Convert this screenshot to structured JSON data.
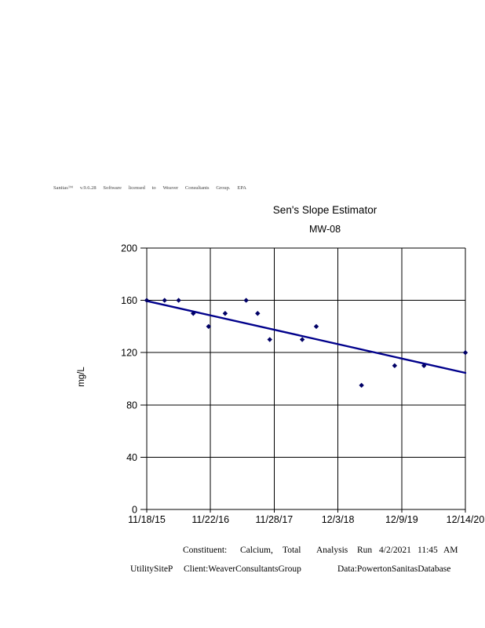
{
  "watermark": {
    "tokens": [
      "Sanitas™",
      "v.9.6.28",
      "Software",
      "licensed",
      "to",
      "Weaver",
      "Consultants",
      "Group.",
      "EPA"
    ]
  },
  "chart_data": {
    "type": "scatter",
    "title": "Sen's Slope Estimator",
    "subtitle": "MW-08",
    "ylabel": "mg/L",
    "ylim": [
      0,
      200
    ],
    "yticks": [
      0,
      40,
      80,
      120,
      160,
      200
    ],
    "x_tick_labels": [
      "11/18/15",
      "11/22/16",
      "11/28/17",
      "12/3/18",
      "12/9/19",
      "12/14/20"
    ],
    "grid": true,
    "legend_position": "none",
    "points_unit": "t = position along x-axis in tick-interval units (0 = 11/18/15, 5 = 12/14/20), value in mg/L",
    "points": [
      {
        "t": 0.0,
        "value": 160
      },
      {
        "t": 0.28,
        "value": 160
      },
      {
        "t": 0.5,
        "value": 160
      },
      {
        "t": 0.73,
        "value": 150
      },
      {
        "t": 0.97,
        "value": 140
      },
      {
        "t": 1.23,
        "value": 150
      },
      {
        "t": 1.56,
        "value": 160
      },
      {
        "t": 1.74,
        "value": 150
      },
      {
        "t": 1.93,
        "value": 130
      },
      {
        "t": 2.44,
        "value": 130
      },
      {
        "t": 2.66,
        "value": 140
      },
      {
        "t": 3.37,
        "value": 95
      },
      {
        "t": 3.89,
        "value": 110
      },
      {
        "t": 4.35,
        "value": 110
      },
      {
        "t": 5.0,
        "value": 120
      }
    ],
    "trend_line": {
      "start_t": 0,
      "start_value": 159.5,
      "end_t": 5,
      "end_value": 104.5
    },
    "colors": {
      "trend_line": "#00008B",
      "point": "#000066",
      "grid": "#000000",
      "axis": "#000000",
      "text": "#000000"
    }
  },
  "footer": {
    "line1_tokens": [
      "Constituent:",
      "Calcium,",
      "Total",
      "Analysis",
      "Run",
      "4/2/2021",
      "11:45",
      "AM"
    ],
    "line2_tokens": [
      "UtilitySiteP",
      "Client:WeaverConsultantsGroup",
      "Data:PowertonSanitasDatabase"
    ]
  }
}
